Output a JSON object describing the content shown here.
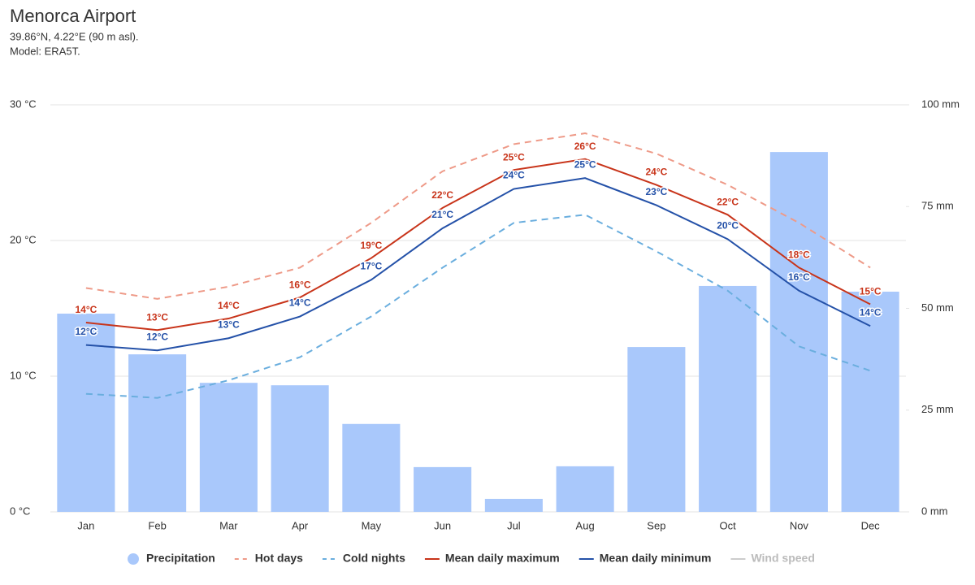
{
  "chart_data": {
    "type": "combo",
    "title": "Menorca Airport",
    "subtitle": [
      "39.86°N, 4.22°E (90 m asl).",
      "Model: ERA5T."
    ],
    "categories": [
      "Jan",
      "Feb",
      "Mar",
      "Apr",
      "May",
      "Jun",
      "Jul",
      "Aug",
      "Sep",
      "Oct",
      "Nov",
      "Dec"
    ],
    "ylim": [
      0,
      30
    ],
    "yticks": [
      {
        "value": 0,
        "label": "0 °C"
      },
      {
        "value": 10,
        "label": "10 °C"
      },
      {
        "value": 20,
        "label": "20 °C"
      },
      {
        "value": 30,
        "label": "30 °C"
      }
    ],
    "y2lim": [
      0,
      100
    ],
    "y2ticks": [
      {
        "value": 0,
        "label": "0 mm"
      },
      {
        "value": 25,
        "label": "25 mm"
      },
      {
        "value": 50,
        "label": "50 mm"
      },
      {
        "value": 75,
        "label": "75 mm"
      },
      {
        "value": 100,
        "label": "100 mm"
      }
    ],
    "grid": true,
    "legend": "bottom",
    "series": [
      {
        "name": "Precipitation",
        "type": "bar",
        "axis": "y2",
        "color": "#a9c8fb",
        "values": [
          48.7,
          38.7,
          31.7,
          31.1,
          21.6,
          11,
          3.2,
          11.2,
          40.5,
          55.5,
          88.4,
          54.1
        ]
      },
      {
        "name": "Hot days",
        "type": "line",
        "line_style": "dashed",
        "color": "#ee9a88",
        "values": [
          16.5,
          15.7,
          16.6,
          18.0,
          21.3,
          25.1,
          27.1,
          27.9,
          26.4,
          24.1,
          21.3,
          18.0
        ]
      },
      {
        "name": "Cold nights",
        "type": "line",
        "line_style": "dashed",
        "color": "#6aaede",
        "values": [
          8.7,
          8.4,
          9.7,
          11.4,
          14.4,
          18.0,
          21.3,
          21.9,
          19.2,
          16.3,
          12.2,
          10.4
        ]
      },
      {
        "name": "Mean daily maximum",
        "type": "line",
        "line_style": "solid",
        "color": "#c8341a",
        "values": [
          13.95,
          13.4,
          14.25,
          15.8,
          18.7,
          22.4,
          25.2,
          26.0,
          24.1,
          21.9,
          18.0,
          15.3
        ],
        "value_labels": [
          "14°C",
          "13°C",
          "14°C",
          "16°C",
          "19°C",
          "22°C",
          "25°C",
          "26°C",
          "24°C",
          "22°C",
          "18°C",
          "15°C"
        ]
      },
      {
        "name": "Mean daily minimum",
        "type": "line",
        "line_style": "solid",
        "color": "#2451a8",
        "values": [
          12.3,
          11.9,
          12.8,
          14.4,
          17.1,
          20.9,
          23.8,
          24.6,
          22.6,
          20.1,
          16.3,
          13.7
        ],
        "value_labels": [
          "12°C",
          "12°C",
          "13°C",
          "14°C",
          "17°C",
          "21°C",
          "24°C",
          "25°C",
          "23°C",
          "20°C",
          "16°C",
          "14°C"
        ]
      },
      {
        "name": "Wind speed",
        "type": "line",
        "line_style": "solid",
        "color": "#aaaaaa",
        "hidden": true,
        "values": [
          null,
          null,
          null,
          null,
          null,
          null,
          null,
          null,
          null,
          null,
          null,
          null
        ]
      }
    ]
  }
}
